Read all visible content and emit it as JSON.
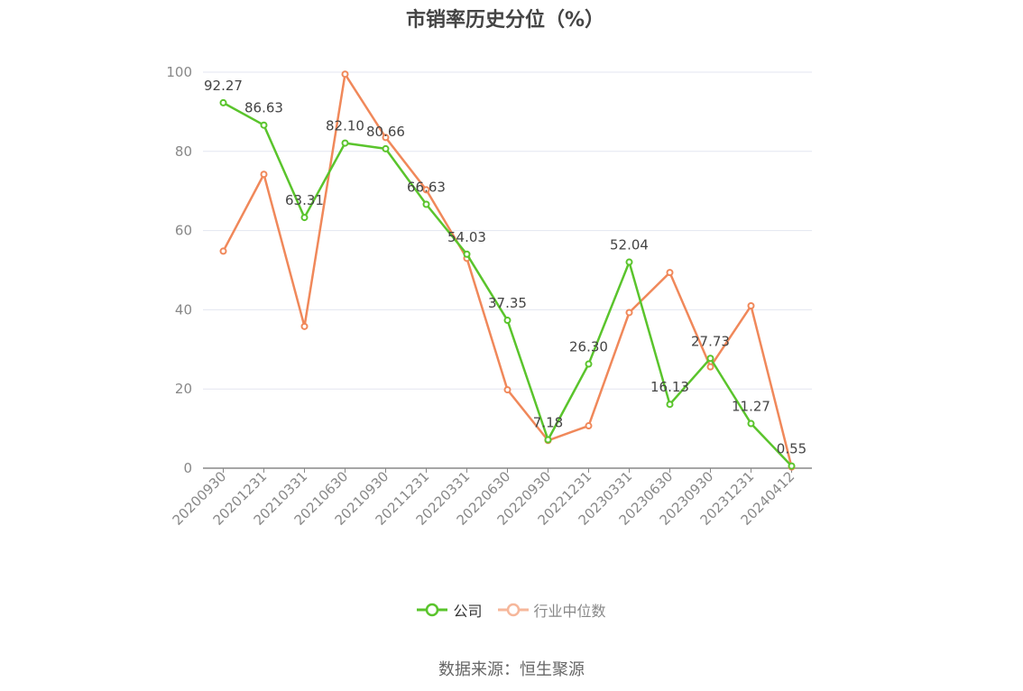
{
  "chart_data": {
    "type": "line",
    "title": "市销率历史分位（%）",
    "categories": [
      "20200930",
      "20201231",
      "20210331",
      "20210630",
      "20210930",
      "20211231",
      "20220331",
      "20220630",
      "20220930",
      "20221231",
      "20230331",
      "20230630",
      "20230930",
      "20231231",
      "20240412"
    ],
    "yticks": [
      "0",
      "20",
      "40",
      "60",
      "80",
      "100"
    ],
    "ylim": [
      0,
      100
    ],
    "grid": true,
    "legend_position": "bottom",
    "series": [
      {
        "name": "公司",
        "color": "#5ac42c",
        "values": [
          92.27,
          86.63,
          63.31,
          82.1,
          80.66,
          66.63,
          54.03,
          37.35,
          7.18,
          26.3,
          52.04,
          16.13,
          27.73,
          11.27,
          0.55
        ],
        "labels": [
          "92.27",
          "86.63",
          "63.31",
          "82.10",
          "80.66",
          "66.63",
          "54.03",
          "37.35",
          "7.18",
          "26.30",
          "52.04",
          "16.13",
          "27.73",
          "11.27",
          "0.55"
        ]
      },
      {
        "name": "行业中位数",
        "color": "#f0885a",
        "values": [
          54.8,
          74.2,
          35.8,
          99.5,
          83.5,
          70.3,
          53.0,
          19.8,
          7.0,
          10.7,
          39.3,
          49.4,
          25.6,
          41.0,
          0.3
        ]
      }
    ]
  },
  "legend": {
    "company_label": "公司",
    "industry_label": "行业中位数"
  },
  "source": "数据来源：恒生聚源"
}
